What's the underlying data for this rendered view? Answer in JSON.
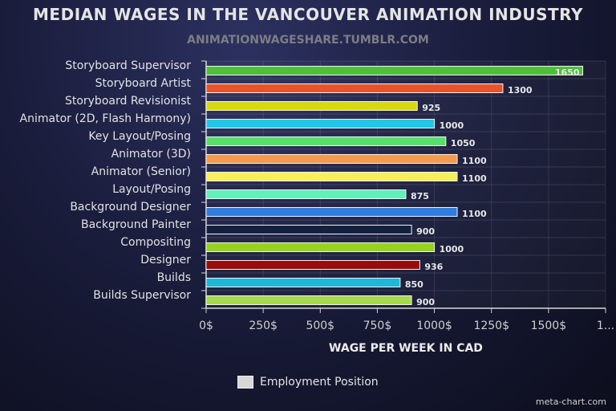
{
  "chart_data": {
    "type": "bar",
    "orientation": "horizontal",
    "title": "MEDIAN WAGES IN THE VANCOUVER ANIMATION INDUSTRY",
    "subtitle": "ANIMATIONWAGESHARE.TUMBLR.COM",
    "xlabel": "WAGE PER WEEK IN CAD",
    "categories": [
      "Storyboard Supervisor",
      "Storyboard Artist",
      "Storyboard Revisionist",
      "Animator (2D, Flash Harmony)",
      "Key Layout/Posing",
      "Animator (3D)",
      "Animator (Senior)",
      "Layout/Posing",
      "Background Designer",
      "Background Painter",
      "Compositing",
      "Designer",
      "Builds",
      "Builds Supervisor"
    ],
    "series": [
      {
        "name": "Employment Position",
        "values": [
          1650,
          1300,
          925,
          1000,
          1050,
          1100,
          1100,
          875,
          1100,
          900,
          1000,
          936,
          850,
          900
        ]
      }
    ],
    "bar_colors": [
      "#4fbf3a",
      "#e8542a",
      "#d7d80f",
      "#1ec8e6",
      "#56e06a",
      "#f59a4b",
      "#f7ef57",
      "#62f0b8",
      "#2f7dde",
      "#12213f",
      "#96d21e",
      "#9a0b0b",
      "#1fb7d8",
      "#a6d94e"
    ],
    "xlim": [
      0,
      1750
    ],
    "xticks": [
      "0$",
      "250$",
      "500$",
      "750$",
      "1000$",
      "1250$",
      "1500$",
      "1..."
    ],
    "grid": true,
    "legend": {
      "position": "bottom",
      "label": "Employment Position",
      "color": "#d7d7d7"
    }
  },
  "credit": "meta-chart.com"
}
